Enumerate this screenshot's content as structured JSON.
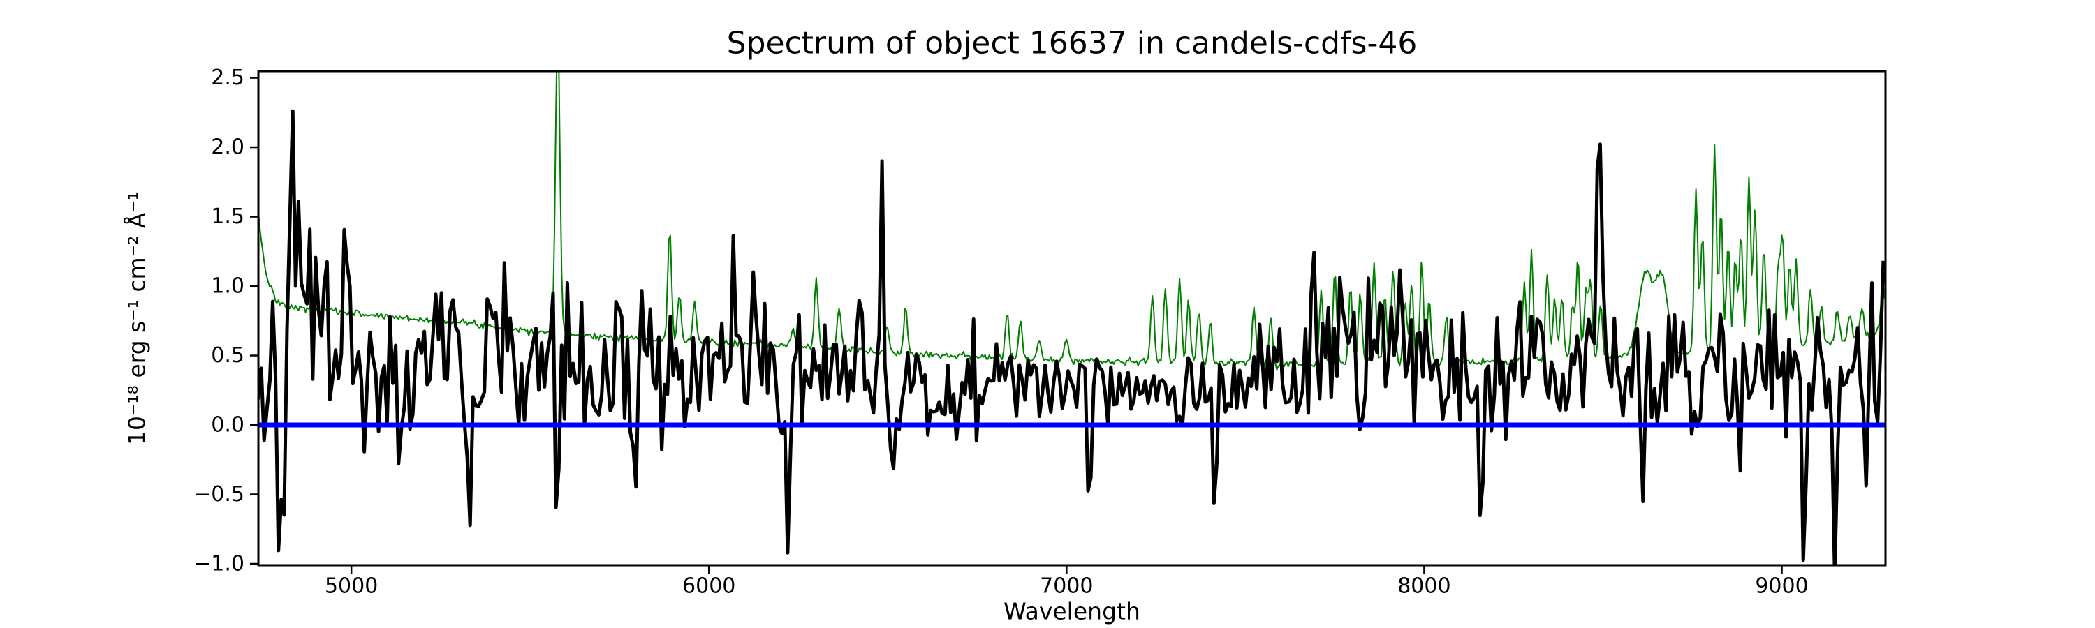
{
  "figure": {
    "background": "#ffffff",
    "text_color": "#000000"
  },
  "chart_data": {
    "type": "line",
    "title": "Spectrum of object 16637 in candels-cdfs-46",
    "xlabel": "Wavelength",
    "ylabel": "10⁻¹⁸ erg s⁻¹ cm⁻² Å⁻¹",
    "xlim": [
      4740,
      9290
    ],
    "ylim": [
      -1.01,
      2.548
    ],
    "grid": false,
    "legend": null,
    "xticks": [
      5000,
      6000,
      7000,
      8000,
      9000
    ],
    "xtick_labels": [
      "5000",
      "6000",
      "7000",
      "8000",
      "9000"
    ],
    "yticks": [
      -1.0,
      -0.5,
      0.0,
      0.5,
      1.0,
      1.5,
      2.0,
      2.5
    ],
    "ytick_labels": [
      "−1.0",
      "−0.5",
      "0.0",
      "0.5",
      "1.0",
      "1.5",
      "2.0",
      "2.5"
    ],
    "series": [
      {
        "name": "sky-noise-spectrum",
        "color": "#008000",
        "linewidth": 2,
        "sample_step": 4,
        "noise_seed": 7,
        "noise_sigma": [
          [
            4740,
            0.012
          ],
          [
            9290,
            0.012
          ]
        ],
        "continuum": [
          [
            4740,
            1.5
          ],
          [
            4760,
            1.1
          ],
          [
            4790,
            0.88
          ],
          [
            4850,
            0.84
          ],
          [
            4950,
            0.82
          ],
          [
            5100,
            0.78
          ],
          [
            5300,
            0.74
          ],
          [
            5500,
            0.68
          ],
          [
            5700,
            0.64
          ],
          [
            5900,
            0.61
          ],
          [
            6100,
            0.58
          ],
          [
            6300,
            0.56
          ],
          [
            6500,
            0.52
          ],
          [
            6700,
            0.5
          ],
          [
            6900,
            0.47
          ],
          [
            7100,
            0.46
          ],
          [
            7300,
            0.45
          ],
          [
            7600,
            0.44
          ],
          [
            7900,
            0.45
          ],
          [
            8200,
            0.45
          ],
          [
            8400,
            0.47
          ],
          [
            8600,
            0.5
          ],
          [
            8800,
            0.53
          ],
          [
            9000,
            0.56
          ],
          [
            9100,
            0.58
          ],
          [
            9200,
            0.62
          ],
          [
            9260,
            0.66
          ],
          [
            9290,
            0.8
          ]
        ],
        "features": [
          [
            5577,
            2.9,
            6
          ],
          [
            5890,
            1.42
          ],
          [
            5917,
            0.95
          ],
          [
            5960,
            0.88
          ],
          [
            6235,
            0.7
          ],
          [
            6300,
            1.06
          ],
          [
            6364,
            0.86
          ],
          [
            6498,
            0.72
          ],
          [
            6550,
            0.85
          ],
          [
            6834,
            0.8
          ],
          [
            6871,
            0.76
          ],
          [
            6923,
            0.62
          ],
          [
            7000,
            0.64
          ],
          [
            7240,
            0.93
          ],
          [
            7276,
            1.0
          ],
          [
            7316,
            1.06
          ],
          [
            7341,
            0.9
          ],
          [
            7370,
            0.82
          ],
          [
            7402,
            0.74
          ],
          [
            7524,
            0.86
          ],
          [
            7571,
            0.78
          ],
          [
            7712,
            0.97
          ],
          [
            7750,
            1.13
          ],
          [
            7794,
            1.0
          ],
          [
            7821,
            0.96
          ],
          [
            7860,
            1.16
          ],
          [
            7890,
            0.94
          ],
          [
            7913,
            1.13
          ],
          [
            7947,
            0.9
          ],
          [
            7965,
            1.02
          ],
          [
            7993,
            1.16
          ],
          [
            8014,
            0.92
          ],
          [
            8062,
            0.78
          ],
          [
            8280,
            1.02
          ],
          [
            8300,
            1.24
          ],
          [
            8344,
            1.1
          ],
          [
            8365,
            0.9
          ],
          [
            8385,
            0.92
          ],
          [
            8415,
            0.86
          ],
          [
            8430,
            1.2
          ],
          [
            8452,
            0.96
          ],
          [
            8465,
            1.05
          ],
          [
            8493,
            0.88
          ],
          [
            8620,
            1.1,
            20
          ],
          [
            8665,
            1.05,
            16
          ],
          [
            8760,
            1.7
          ],
          [
            8778,
            1.4
          ],
          [
            8812,
            2.02
          ],
          [
            8830,
            1.55
          ],
          [
            8850,
            1.32
          ],
          [
            8870,
            1.2
          ],
          [
            8886,
            1.38
          ],
          [
            8908,
            1.8
          ],
          [
            8925,
            1.55
          ],
          [
            8950,
            1.3
          ],
          [
            8990,
            1.12
          ],
          [
            9002,
            1.35
          ],
          [
            9022,
            1.15
          ],
          [
            9040,
            1.2
          ],
          [
            9080,
            1.0
          ],
          [
            9110,
            0.86
          ],
          [
            9155,
            0.82
          ],
          [
            9190,
            0.8
          ],
          [
            9224,
            0.85
          ],
          [
            9283,
            0.98
          ]
        ]
      },
      {
        "name": "object-flux-spectrum",
        "color": "#000000",
        "linewidth": 5,
        "sample_step": 8,
        "noise_seed": 42,
        "noise_sigma": [
          [
            4740,
            0.33
          ],
          [
            5000,
            0.31
          ],
          [
            5400,
            0.28
          ],
          [
            5800,
            0.25
          ],
          [
            6200,
            0.24
          ],
          [
            6600,
            0.18
          ],
          [
            7000,
            0.17
          ],
          [
            7300,
            0.19
          ],
          [
            7600,
            0.21
          ],
          [
            7900,
            0.22
          ],
          [
            8200,
            0.22
          ],
          [
            8500,
            0.25
          ],
          [
            8800,
            0.27
          ],
          [
            9000,
            0.28
          ],
          [
            9290,
            0.3
          ]
        ],
        "continuum": [
          [
            4740,
            0.5
          ],
          [
            4900,
            0.45
          ],
          [
            5100,
            0.4
          ],
          [
            5400,
            0.4
          ],
          [
            5700,
            0.38
          ],
          [
            6000,
            0.36
          ],
          [
            6300,
            0.34
          ],
          [
            6600,
            0.3
          ],
          [
            6900,
            0.3
          ],
          [
            7200,
            0.31
          ],
          [
            7500,
            0.33
          ],
          [
            7700,
            0.42
          ],
          [
            7850,
            0.45
          ],
          [
            8000,
            0.37
          ],
          [
            8300,
            0.38
          ],
          [
            8600,
            0.38
          ],
          [
            8900,
            0.37
          ],
          [
            9100,
            0.33
          ],
          [
            9250,
            0.34
          ],
          [
            9290,
            0.55
          ]
        ],
        "features": [
          [
            4834,
            1.88
          ],
          [
            4852,
            1.25
          ],
          [
            4875,
            1.35
          ],
          [
            4902,
            1.62
          ],
          [
            4930,
            1.38
          ],
          [
            4988,
            1.6
          ],
          [
            5055,
            1.15
          ],
          [
            5150,
            1.02
          ],
          [
            5240,
            1.1
          ],
          [
            5385,
            1.16
          ],
          [
            5430,
            1.02
          ],
          [
            5560,
            0.95
          ],
          [
            5810,
            0.95
          ],
          [
            6070,
            1.17
          ],
          [
            6120,
            0.97
          ],
          [
            6420,
            0.95
          ],
          [
            6485,
            1.53
          ],
          [
            7690,
            0.9
          ],
          [
            7730,
            0.88
          ],
          [
            7770,
            0.86
          ],
          [
            7880,
            1.0
          ],
          [
            7942,
            0.95
          ],
          [
            8330,
            0.85
          ],
          [
            8490,
            2.45,
            7
          ],
          [
            4800,
            -0.62
          ],
          [
            5037,
            -0.85
          ],
          [
            5145,
            -0.65
          ],
          [
            5330,
            -0.6
          ],
          [
            5575,
            -0.66
          ],
          [
            5795,
            -0.7
          ],
          [
            6220,
            -0.73
          ],
          [
            6515,
            -0.7
          ],
          [
            7060,
            -0.55
          ],
          [
            7410,
            -0.6
          ],
          [
            8160,
            -0.55
          ],
          [
            8610,
            -0.6
          ],
          [
            8880,
            -0.65
          ],
          [
            9060,
            -0.6
          ],
          [
            9150,
            -0.68
          ],
          [
            9235,
            -0.72
          ]
        ]
      },
      {
        "name": "zero-flux-line",
        "color": "#0000ff",
        "linewidth": 7,
        "y": 0.0
      }
    ]
  }
}
